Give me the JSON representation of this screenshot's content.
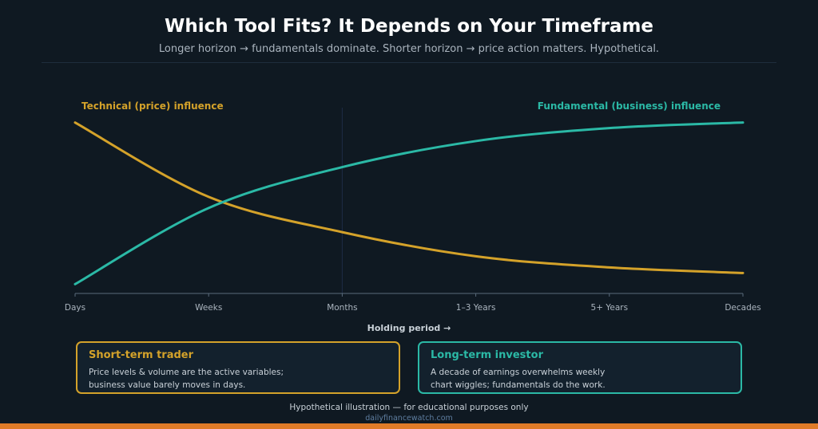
{
  "header": {
    "title": "Which Tool Fits? It Depends on Your Timeframe",
    "subtitle": "Longer horizon → fundamentals dominate. Shorter horizon → price action matters. Hypothetical."
  },
  "chart_data": {
    "type": "line",
    "xlabel": "Holding period →",
    "ylabel": "",
    "x": [
      "Days",
      "Weeks",
      "Months",
      "1–3 Years",
      "5+ Years",
      "Decades"
    ],
    "ylim": [
      0,
      100
    ],
    "grid": false,
    "divider_at": "Months",
    "series": [
      {
        "name": "Technical (price) influence",
        "color": "#d4a22a",
        "values": [
          92,
          52,
          33,
          20,
          14,
          11
        ],
        "label_position": "top-left"
      },
      {
        "name": "Fundamental (business) influence",
        "color": "#2bb9a6",
        "values": [
          5,
          46,
          68,
          82,
          89,
          92
        ],
        "label_position": "top-right"
      }
    ]
  },
  "cards": [
    {
      "title": "Short-term trader",
      "lines": [
        "Price levels & volume are the active variables;",
        "business value barely moves in days."
      ],
      "accent": "#d4a22a"
    },
    {
      "title": "Long-term investor",
      "lines": [
        "A decade of earnings overwhelms weekly",
        "chart wiggles; fundamentals do the work."
      ],
      "accent": "#2bb9a6"
    }
  ],
  "footer": {
    "disclaimer": "Hypothetical illustration — for educational purposes only",
    "site": "dailyfinancewatch.com"
  },
  "colors": {
    "background": "#0f1922",
    "accent_bar": "#e07b28"
  }
}
